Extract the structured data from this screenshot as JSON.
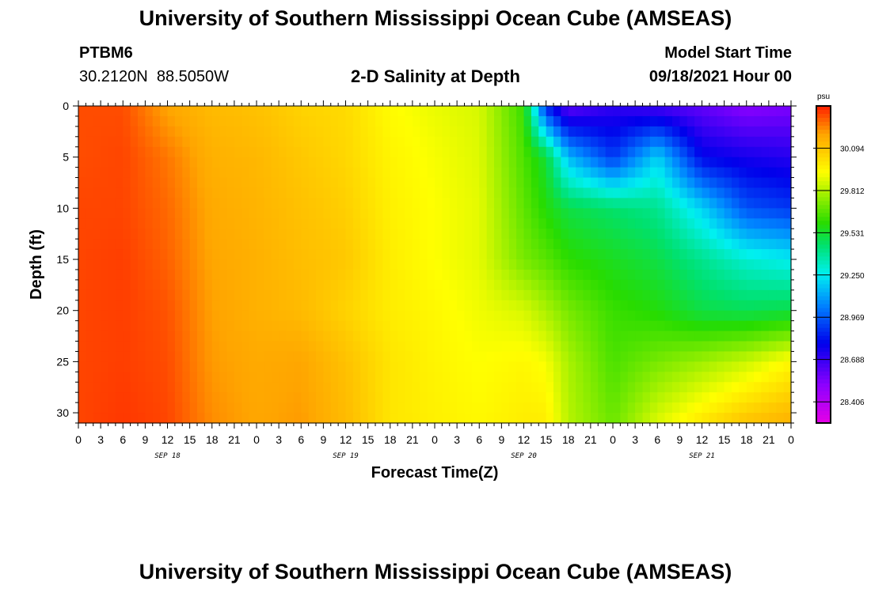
{
  "header": {
    "title": "University of Southern Mississippi Ocean Cube (AMSEAS)",
    "station_id": "PTBM6",
    "station_coords": "30.2120N  88.5050W",
    "plot_title": "2-D Salinity at Depth",
    "model_label": "Model Start Time",
    "model_time": "09/18/2021 Hour 00"
  },
  "footer": {
    "title": "University of Southern Mississippi Ocean Cube (AMSEAS)"
  },
  "chart_data": {
    "type": "heatmap",
    "title": "2-D Salinity at Depth",
    "xlabel": "Forecast Time(Z)",
    "ylabel": "Depth (ft)",
    "x_tick_labels": [
      "0",
      "3",
      "6",
      "9",
      "12",
      "15",
      "18",
      "21",
      "0",
      "3",
      "6",
      "9",
      "12",
      "15",
      "18",
      "21",
      "0",
      "3",
      "6",
      "9",
      "12",
      "15",
      "18",
      "21",
      "0",
      "3",
      "6",
      "9",
      "12",
      "15",
      "18",
      "21",
      "0"
    ],
    "x_hours": [
      0,
      96
    ],
    "day_labels": [
      {
        "label": "SEP 18",
        "hour": 12
      },
      {
        "label": "SEP 19",
        "hour": 36
      },
      {
        "label": "SEP 20",
        "hour": 60
      },
      {
        "label": "SEP 21",
        "hour": 84
      }
    ],
    "y_tick_labels": [
      "0",
      "5",
      "10",
      "15",
      "20",
      "25",
      "30"
    ],
    "ylim": [
      0,
      31
    ],
    "colorbar": {
      "unit": "psu",
      "tick_labels": [
        "30.094",
        "29.812",
        "29.531",
        "29.250",
        "28.969",
        "28.688",
        "28.406"
      ],
      "range": [
        28.265,
        30.375
      ]
    },
    "depths": [
      0,
      5,
      10,
      15,
      20,
      25,
      31
    ],
    "hours": [
      0,
      6,
      12,
      18,
      24,
      30,
      36,
      42,
      48,
      54,
      60,
      63,
      66,
      72,
      78,
      84,
      90,
      96
    ],
    "values": [
      [
        30.31,
        30.31,
        30.18,
        30.12,
        30.1,
        30.05,
        30.03,
        29.94,
        29.9,
        29.87,
        29.62,
        28.85,
        28.6,
        28.7,
        28.65,
        28.6,
        28.52,
        28.55
      ],
      [
        30.31,
        30.32,
        30.25,
        30.15,
        30.13,
        30.08,
        30.04,
        29.96,
        29.92,
        29.88,
        29.65,
        29.52,
        29.15,
        28.9,
        29.2,
        28.8,
        28.75,
        28.72
      ],
      [
        30.32,
        30.32,
        30.27,
        30.17,
        30.14,
        30.1,
        30.06,
        29.97,
        29.93,
        29.89,
        29.68,
        29.58,
        29.5,
        29.45,
        29.4,
        29.2,
        28.95,
        28.9
      ],
      [
        30.32,
        30.33,
        30.28,
        30.18,
        30.15,
        30.11,
        30.08,
        29.98,
        29.93,
        29.89,
        29.72,
        29.67,
        29.6,
        29.55,
        29.5,
        29.4,
        29.3,
        29.25
      ],
      [
        30.32,
        30.33,
        30.3,
        30.19,
        30.15,
        30.12,
        30.05,
        29.98,
        29.95,
        29.91,
        29.87,
        29.8,
        29.72,
        29.62,
        29.58,
        29.5,
        29.48,
        29.5
      ],
      [
        30.32,
        30.33,
        30.31,
        30.2,
        30.17,
        30.18,
        30.1,
        30.0,
        29.96,
        29.93,
        29.95,
        29.92,
        29.8,
        29.65,
        29.72,
        29.78,
        29.85,
        29.95
      ],
      [
        30.32,
        30.34,
        30.32,
        30.22,
        30.18,
        30.2,
        30.12,
        30.0,
        29.97,
        29.95,
        29.98,
        29.98,
        29.82,
        29.7,
        29.88,
        30.0,
        30.1,
        30.15
      ]
    ]
  }
}
